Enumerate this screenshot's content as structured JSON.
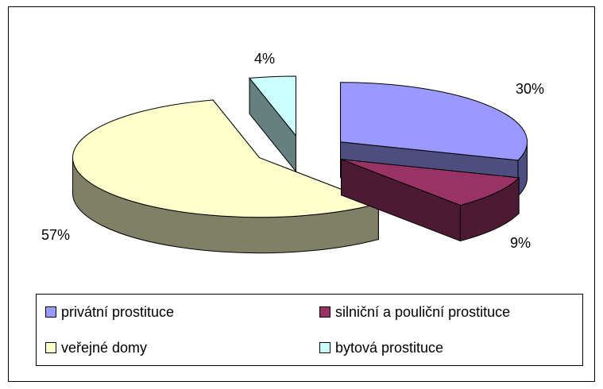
{
  "chart_data": {
    "type": "pie3d",
    "categories": [
      "privátní prostituce",
      "silniční a pouliční prostituce",
      "veřejné domy",
      "bytová prostituce"
    ],
    "values": [
      30,
      9,
      57,
      4
    ],
    "value_labels": [
      "30%",
      "9%",
      "57%",
      "4%"
    ],
    "colors": [
      "#9999ff",
      "#993366",
      "#ffffcc",
      "#ccffff"
    ],
    "legend": "bottom"
  }
}
